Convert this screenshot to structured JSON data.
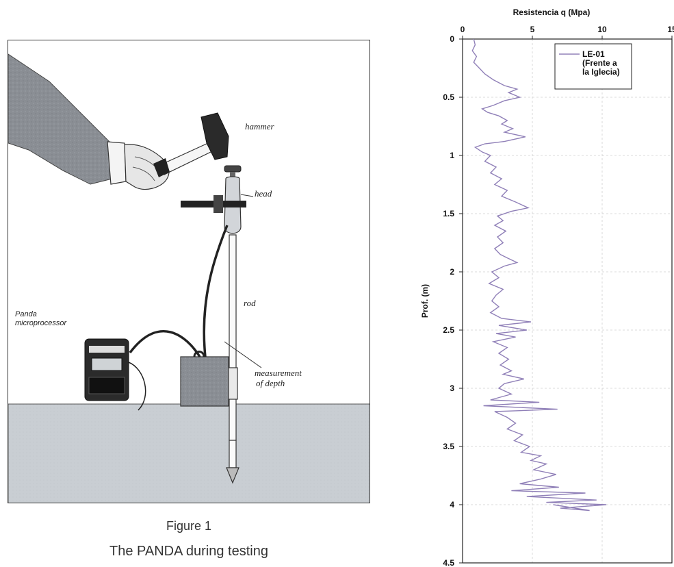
{
  "figure": {
    "labels": {
      "hammer": "hammer",
      "head": "head",
      "rod": "rod",
      "panda_line1": "Panda",
      "panda_line2": "microprocessor",
      "measurement_line1": "measurement",
      "measurement_line2": "of depth"
    },
    "caption_number": "Figure 1",
    "caption_text": "The PANDA during testing"
  },
  "chart_data": {
    "type": "line",
    "title": "Resistencia q (Mpa)",
    "xlabel": "Resistencia q (Mpa)",
    "ylabel": "Prof. (m)",
    "xlim": [
      0,
      15
    ],
    "ylim": [
      4.5,
      0
    ],
    "x_ticks": [
      "0",
      "5",
      "10",
      "15"
    ],
    "y_ticks": [
      "0",
      "0.5",
      "1",
      "1.5",
      "2",
      "2.5",
      "3",
      "3.5",
      "4",
      "4.5"
    ],
    "grid": true,
    "legend_placement": "top-center",
    "series": [
      {
        "name_lines": [
          "LE-01",
          "(Frente a",
          "la Iglecia)"
        ],
        "color": "#9080b8",
        "points": [
          [
            0.8,
            0.0
          ],
          [
            0.9,
            0.05
          ],
          [
            0.7,
            0.1
          ],
          [
            1.0,
            0.15
          ],
          [
            0.8,
            0.2
          ],
          [
            1.2,
            0.25
          ],
          [
            1.6,
            0.3
          ],
          [
            2.2,
            0.35
          ],
          [
            3.0,
            0.4
          ],
          [
            3.9,
            0.43
          ],
          [
            3.3,
            0.46
          ],
          [
            4.1,
            0.5
          ],
          [
            3.0,
            0.53
          ],
          [
            2.2,
            0.57
          ],
          [
            1.4,
            0.6
          ],
          [
            1.8,
            0.63
          ],
          [
            2.6,
            0.66
          ],
          [
            3.2,
            0.7
          ],
          [
            2.8,
            0.73
          ],
          [
            3.6,
            0.77
          ],
          [
            3.0,
            0.8
          ],
          [
            4.5,
            0.84
          ],
          [
            3.0,
            0.88
          ],
          [
            1.6,
            0.9
          ],
          [
            0.9,
            0.93
          ],
          [
            1.4,
            0.97
          ],
          [
            2.0,
            1.0
          ],
          [
            1.6,
            1.05
          ],
          [
            2.4,
            1.1
          ],
          [
            2.0,
            1.15
          ],
          [
            2.8,
            1.2
          ],
          [
            2.3,
            1.25
          ],
          [
            3.2,
            1.3
          ],
          [
            2.8,
            1.35
          ],
          [
            3.8,
            1.4
          ],
          [
            4.7,
            1.45
          ],
          [
            3.5,
            1.48
          ],
          [
            2.5,
            1.52
          ],
          [
            2.9,
            1.56
          ],
          [
            2.3,
            1.6
          ],
          [
            3.1,
            1.65
          ],
          [
            2.5,
            1.7
          ],
          [
            2.9,
            1.75
          ],
          [
            2.3,
            1.8
          ],
          [
            2.7,
            1.85
          ],
          [
            3.2,
            1.88
          ],
          [
            3.9,
            1.92
          ],
          [
            3.0,
            1.95
          ],
          [
            2.1,
            2.0
          ],
          [
            2.6,
            2.05
          ],
          [
            1.9,
            2.1
          ],
          [
            2.9,
            2.15
          ],
          [
            2.4,
            2.2
          ],
          [
            2.1,
            2.25
          ],
          [
            2.6,
            2.3
          ],
          [
            2.0,
            2.35
          ],
          [
            2.8,
            2.4
          ],
          [
            4.9,
            2.43
          ],
          [
            2.6,
            2.46
          ],
          [
            4.6,
            2.5
          ],
          [
            2.4,
            2.53
          ],
          [
            3.8,
            2.56
          ],
          [
            2.2,
            2.6
          ],
          [
            3.2,
            2.65
          ],
          [
            2.6,
            2.7
          ],
          [
            3.3,
            2.75
          ],
          [
            2.7,
            2.8
          ],
          [
            3.5,
            2.85
          ],
          [
            2.9,
            2.88
          ],
          [
            4.4,
            2.92
          ],
          [
            3.0,
            2.96
          ],
          [
            2.6,
            3.0
          ],
          [
            3.5,
            3.05
          ],
          [
            2.0,
            3.1
          ],
          [
            5.5,
            3.12
          ],
          [
            1.5,
            3.15
          ],
          [
            6.8,
            3.18
          ],
          [
            2.3,
            3.2
          ],
          [
            3.2,
            3.25
          ],
          [
            3.8,
            3.3
          ],
          [
            3.2,
            3.35
          ],
          [
            4.3,
            3.4
          ],
          [
            3.7,
            3.45
          ],
          [
            4.8,
            3.5
          ],
          [
            4.2,
            3.55
          ],
          [
            5.6,
            3.58
          ],
          [
            4.9,
            3.62
          ],
          [
            6.0,
            3.65
          ],
          [
            5.1,
            3.7
          ],
          [
            6.7,
            3.74
          ],
          [
            5.6,
            3.78
          ],
          [
            4.1,
            3.82
          ],
          [
            6.9,
            3.85
          ],
          [
            3.5,
            3.88
          ],
          [
            8.8,
            3.9
          ],
          [
            4.6,
            3.93
          ],
          [
            9.6,
            3.96
          ],
          [
            6.0,
            3.98
          ],
          [
            10.3,
            4.0
          ],
          [
            7.0,
            4.03
          ],
          [
            9.1,
            4.05
          ],
          [
            6.5,
            4.0
          ]
        ]
      }
    ]
  }
}
